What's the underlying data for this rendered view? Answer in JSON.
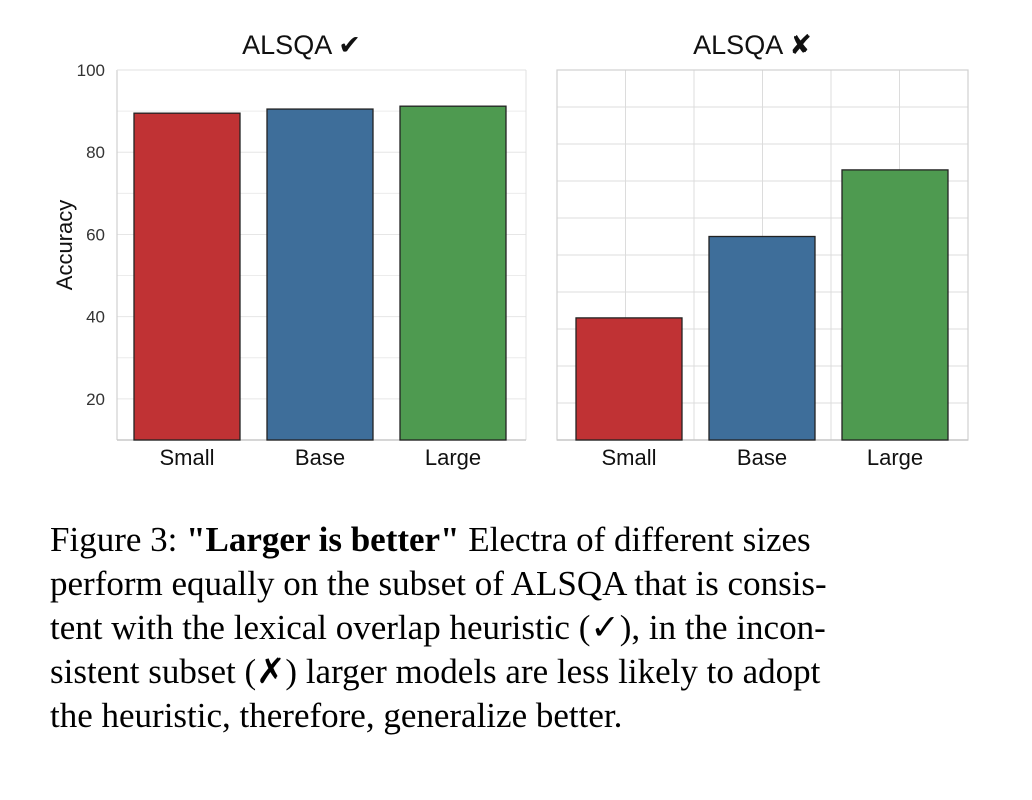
{
  "chart_data": [
    {
      "type": "bar",
      "title": "ALSQA ✔",
      "ylabel": "Accuracy",
      "categories": [
        "Small",
        "Base",
        "Large"
      ],
      "values": [
        89.5,
        90.5,
        91.2
      ],
      "colors": [
        "#c03234",
        "#3e6e9a",
        "#4e9a50"
      ],
      "ylim": [
        10,
        100
      ],
      "yticks": [
        20,
        40,
        60,
        80,
        100
      ],
      "grid": false
    },
    {
      "type": "bar",
      "title": "ALSQA ✘",
      "ylabel": "",
      "categories": [
        "Small",
        "Base",
        "Large"
      ],
      "values": [
        43,
        65,
        83
      ],
      "colors": [
        "#c03234",
        "#3e6e9a",
        "#4e9a50"
      ],
      "ylim": [
        10,
        110
      ],
      "yticks": [],
      "grid": true
    }
  ],
  "caption": {
    "label": "Figure 3: ",
    "bold": "\"Larger is better\"",
    "lines": [
      " Electra of different sizes",
      "perform equally on the subset of ALSQA that is consis-",
      "tent with the lexical overlap heuristic (✓), in the incon-",
      "sistent subset (✗) larger models are less likely to adopt",
      "the heuristic, therefore, generalize better."
    ]
  }
}
